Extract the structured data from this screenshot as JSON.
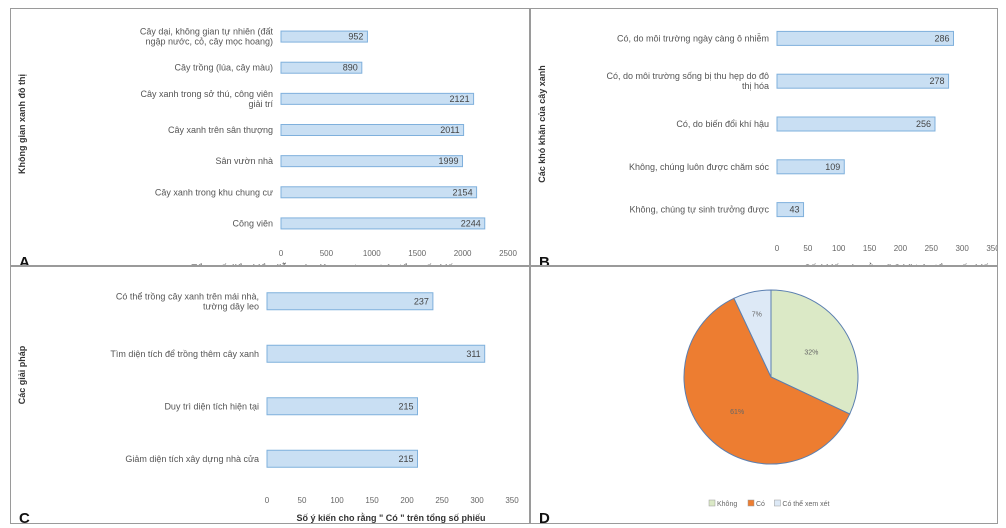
{
  "colors": {
    "bar_fill": "#c9dff3",
    "bar_stroke": "#7fb0dc",
    "pie_khong": "#dbe9c6",
    "pie_co": "#ed7d31",
    "pie_co_the": "#dde9f6"
  },
  "panels": {
    "A": {
      "letter": "A"
    },
    "B": {
      "letter": "B"
    },
    "C": {
      "letter": "C"
    },
    "D": {
      "letter": "D"
    }
  },
  "chart_data": [
    {
      "id": "A",
      "type": "bar",
      "orientation": "horizontal",
      "categories": [
        "Cây dại, không gian tự nhiên (đất ngập nước, cỏ, cây mọc hoang)",
        "Cây trồng (lúa, cây màu)",
        "Cây xanh trong sở thú, công viên giải trí",
        "Cây xanh trên sân thượng",
        "Sân vườn nhà",
        "Cây xanh trong khu chung cư",
        "Công viên"
      ],
      "values": [
        952,
        890,
        2121,
        2011,
        1999,
        2154,
        2244
      ],
      "xlabel": "Tổng số điểm biểu diễn mức độ quan trọng trên tổng số phiếu.",
      "ylabel": "Không gian xanh đô thị",
      "xticks": [
        0,
        500,
        1000,
        1500,
        2000,
        2500
      ],
      "xlim": [
        0,
        2500
      ]
    },
    {
      "id": "B",
      "type": "bar",
      "orientation": "horizontal",
      "categories": [
        "Có, do môi trường ngày càng ô nhiễm",
        "Có, do môi trường sống bị thu hẹp do đô thị hóa",
        "Có, do biến đổi khí hậu",
        "Không, chúng luôn được chăm sóc",
        "Không, chúng tự sinh trưởng được"
      ],
      "values": [
        286,
        278,
        256,
        109,
        43
      ],
      "xlabel": "Số ý kiến cho rằng \" Có \" trên tổng số phiếu",
      "ylabel": "Các khó khăn của cây xanh",
      "xticks": [
        0,
        50,
        100,
        150,
        200,
        250,
        300,
        350
      ],
      "xlim": [
        0,
        350
      ]
    },
    {
      "id": "C",
      "type": "bar",
      "orientation": "horizontal",
      "categories": [
        "Có thể trồng cây xanh trên mái nhà, tường dây leo",
        "Tìm diện tích để trồng thêm cây xanh",
        "Duy trì diện tích hiện tại",
        "Giảm diện tích xây dựng nhà cửa"
      ],
      "values": [
        237,
        311,
        215,
        215
      ],
      "xlabel": "Số ý kiến cho rằng \" Có \" trên tổng số phiếu",
      "ylabel": "Các giải pháp",
      "xticks": [
        0,
        50,
        100,
        150,
        200,
        250,
        300,
        350
      ],
      "xlim": [
        0,
        350
      ]
    },
    {
      "id": "D",
      "type": "pie",
      "slices": [
        {
          "label": "Không",
          "value": 32,
          "text": "32%"
        },
        {
          "label": "Có",
          "value": 61,
          "text": "61%"
        },
        {
          "label": "Có thể xem xét",
          "value": 7,
          "text": "7%"
        }
      ],
      "legend_position": "bottom"
    }
  ]
}
